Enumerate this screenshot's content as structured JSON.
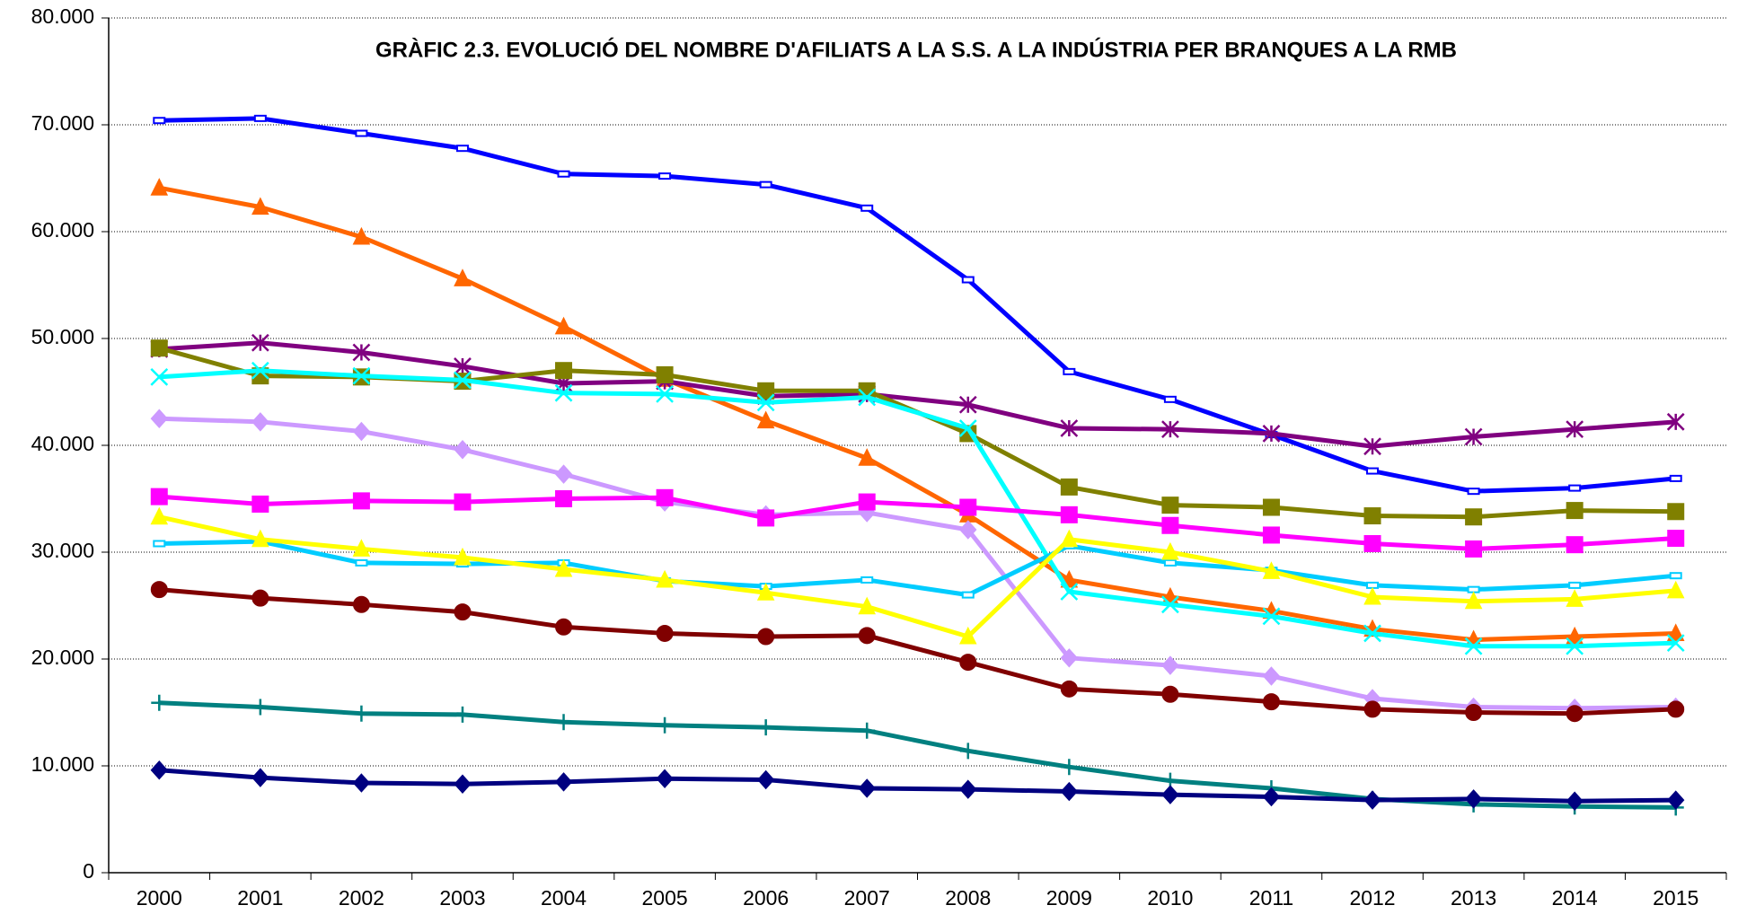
{
  "chart_data": {
    "type": "line",
    "title": "GRÀFIC 2.3. EVOLUCIÓ DEL NOMBRE D'AFILIATS A LA S.S. A LA INDÚSTRIA PER BRANQUES A LA RMB",
    "categories": [
      "2000",
      "2001",
      "2002",
      "2003",
      "2004",
      "2005",
      "2006",
      "2007",
      "2008",
      "2009",
      "2010",
      "2011",
      "2012",
      "2013",
      "2014",
      "2015"
    ],
    "ylim": [
      0,
      80000
    ],
    "yticks": [
      0,
      {
        "value": 10000,
        "label": "10.000"
      },
      {
        "value": 20000,
        "label": "20.000"
      },
      {
        "value": 30000,
        "label": "30.000"
      },
      {
        "value": 40000,
        "label": "40.000"
      },
      {
        "value": 50000,
        "label": "50.000"
      },
      {
        "value": 60000,
        "label": "60.000"
      },
      {
        "value": 70000,
        "label": "70.000"
      },
      {
        "value": 80000,
        "label": "80.000"
      }
    ],
    "grid": true,
    "series": [
      {
        "color": "#0000ff",
        "marker": "dash",
        "values": [
          70400,
          70600,
          69200,
          67800,
          65400,
          65200,
          64400,
          62200,
          55500,
          46900,
          44300,
          41000,
          37600,
          35700,
          36000,
          36900
        ]
      },
      {
        "color": "#ff6600",
        "marker": "triangle",
        "values": [
          64100,
          62300,
          59500,
          55600,
          51100,
          46200,
          42300,
          38800,
          33500,
          27400,
          25800,
          24500,
          22800,
          21800,
          22100,
          22400
        ]
      },
      {
        "color": "#800080",
        "marker": "star",
        "values": [
          49000,
          49600,
          48700,
          47400,
          45800,
          46000,
          44600,
          44800,
          43800,
          41600,
          41500,
          41100,
          39900,
          40800,
          41500,
          42200
        ]
      },
      {
        "color": "#808000",
        "marker": "square",
        "values": [
          49100,
          46500,
          46400,
          46000,
          47000,
          46600,
          45100,
          45100,
          41100,
          36100,
          34400,
          34200,
          33400,
          33300,
          33900,
          33800
        ]
      },
      {
        "color": "#00ffff",
        "marker": "x",
        "values": [
          46400,
          47000,
          46500,
          46100,
          44900,
          44800,
          44000,
          44500,
          41600,
          26300,
          25100,
          24000,
          22400,
          21200,
          21200,
          21500
        ]
      },
      {
        "color": "#cc99ff",
        "marker": "diamond",
        "values": [
          42500,
          42200,
          41300,
          39600,
          37300,
          34700,
          33500,
          33700,
          32100,
          20100,
          19400,
          18400,
          16300,
          15500,
          15400,
          15500
        ]
      },
      {
        "color": "#ff00ff",
        "marker": "square",
        "values": [
          35200,
          34500,
          34800,
          34700,
          35000,
          35100,
          33200,
          34700,
          34200,
          33500,
          32500,
          31600,
          30800,
          30300,
          30700,
          31300
        ]
      },
      {
        "color": "#00ccff",
        "marker": "dash",
        "values": [
          30800,
          31000,
          29000,
          28900,
          29000,
          27300,
          26800,
          27400,
          26000,
          30600,
          29000,
          28300,
          26900,
          26500,
          26900,
          27800
        ]
      },
      {
        "color": "#ffff00",
        "marker": "triangle",
        "values": [
          33300,
          31200,
          30300,
          29500,
          28400,
          27400,
          26200,
          24900,
          22100,
          31200,
          30000,
          28200,
          25800,
          25400,
          25600,
          26400
        ]
      },
      {
        "color": "#800000",
        "marker": "circle",
        "values": [
          26500,
          25700,
          25100,
          24400,
          23000,
          22400,
          22100,
          22200,
          19700,
          17200,
          16700,
          16000,
          15300,
          15000,
          14900,
          15300
        ]
      },
      {
        "color": "#008080",
        "marker": "plus",
        "values": [
          15900,
          15500,
          14900,
          14800,
          14100,
          13800,
          13600,
          13300,
          11400,
          9900,
          8600,
          7900,
          6900,
          6400,
          6200,
          6100
        ]
      },
      {
        "color": "#000080",
        "marker": "diamond",
        "values": [
          9600,
          8900,
          8400,
          8300,
          8500,
          8800,
          8700,
          7900,
          7800,
          7600,
          7300,
          7100,
          6800,
          6900,
          6700,
          6800
        ]
      }
    ]
  }
}
